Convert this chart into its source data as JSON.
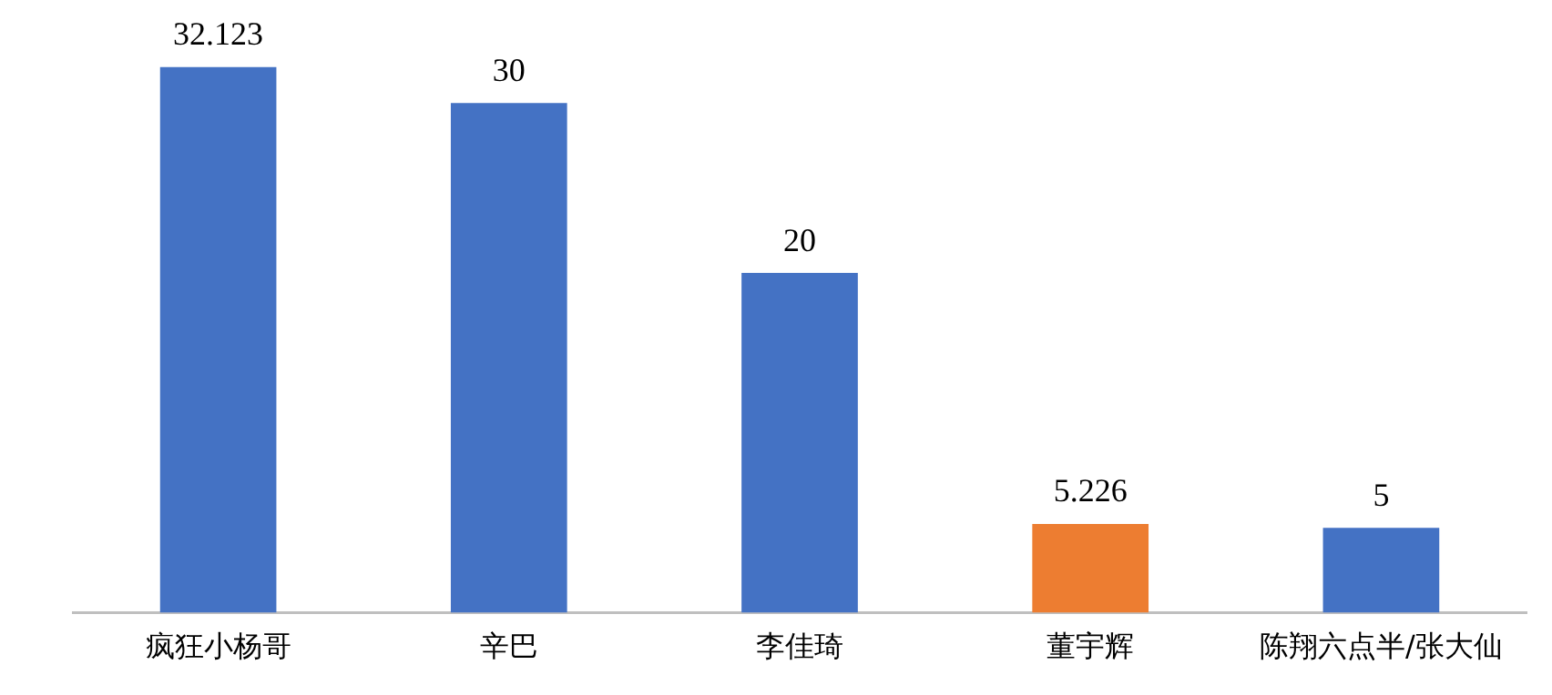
{
  "chart_data": {
    "type": "bar",
    "categories": [
      "疯狂小杨哥",
      "辛巴",
      "李佳琦",
      "董宇辉",
      "陈翔六点半/张大仙"
    ],
    "values": [
      32.123,
      30,
      20,
      5.226,
      5
    ],
    "colors": [
      "#4472c4",
      "#4472c4",
      "#4472c4",
      "#ed7d31",
      "#4472c4"
    ],
    "data_labels": true,
    "grid": false,
    "legend": false
  }
}
